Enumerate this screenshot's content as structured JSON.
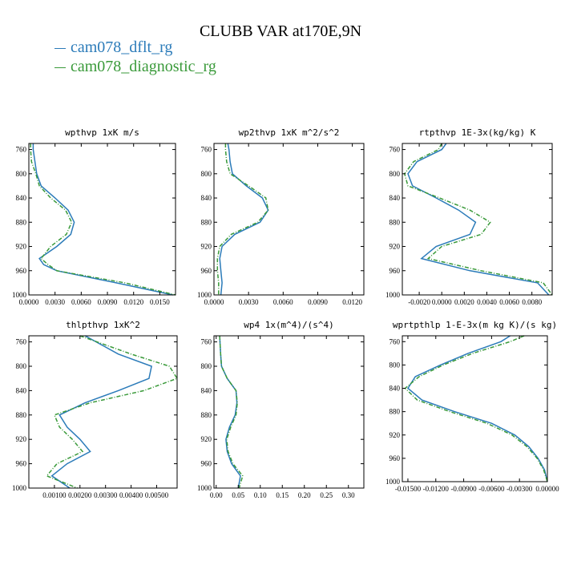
{
  "title": "CLUBB VAR at170E,9N",
  "legend": [
    {
      "label": "cam078_dflt_rg",
      "color": "#2b7bb9"
    },
    {
      "label": "cam078_diagnostic_rg",
      "color": "#3a9a3a"
    }
  ],
  "chart_data": [
    {
      "type": "line",
      "title": "wpthvp  1xK m/s",
      "xlim": [
        0,
        0.0168
      ],
      "ylim": [
        1000,
        750
      ],
      "xticks": [
        "0.0000",
        "0.0030",
        "0.0060",
        "0.0090",
        "0.0120",
        "0.0150"
      ],
      "xtick_values": [
        0,
        0.003,
        0.006,
        0.009,
        0.012,
        0.015
      ],
      "yticks": [
        760,
        800,
        840,
        880,
        920,
        960,
        1000
      ],
      "y": [
        750,
        760,
        780,
        800,
        820,
        840,
        860,
        880,
        900,
        920,
        940,
        950,
        960,
        980,
        1000
      ],
      "series": [
        {
          "values": [
            0.0005,
            0.0005,
            0.0007,
            0.0009,
            0.0014,
            0.003,
            0.0045,
            0.0052,
            0.0048,
            0.0032,
            0.0012,
            0.0017,
            0.0032,
            0.01,
            0.0165
          ]
        },
        {
          "values": [
            0.0002,
            0.0002,
            0.0003,
            0.0008,
            0.0012,
            0.0025,
            0.0042,
            0.0049,
            0.0043,
            0.0025,
            0.0014,
            0.0022,
            0.0032,
            0.011,
            0.0168
          ]
        }
      ]
    },
    {
      "type": "line",
      "title": "wp2thvp  1xK m^2/s^2",
      "xlim": [
        0,
        0.013
      ],
      "ylim": [
        1000,
        750
      ],
      "xticks": [
        "0.0000",
        "0.0030",
        "0.0060",
        "0.0090",
        "0.0120"
      ],
      "xtick_values": [
        0,
        0.003,
        0.006,
        0.009,
        0.012
      ],
      "yticks": [
        760,
        800,
        840,
        880,
        920,
        960,
        1000
      ],
      "y": [
        750,
        760,
        780,
        800,
        820,
        840,
        860,
        880,
        900,
        920,
        940,
        960,
        980,
        1000
      ],
      "series": [
        {
          "values": [
            0.0012,
            0.0013,
            0.0014,
            0.0016,
            0.0028,
            0.0042,
            0.0047,
            0.004,
            0.0018,
            0.0007,
            0.0005,
            0.0006,
            0.0007,
            0.0006
          ]
        },
        {
          "values": [
            0.001,
            0.001,
            0.0011,
            0.0014,
            0.003,
            0.0045,
            0.0047,
            0.0038,
            0.0015,
            0.0005,
            0.0003,
            0.0003,
            0.0004,
            0.0004
          ]
        }
      ]
    },
    {
      "type": "line",
      "title": "rtpthvp  1E-3x(kg/kg) K",
      "xlim": [
        -0.0035,
        0.0098
      ],
      "ylim": [
        1000,
        750
      ],
      "xticks": [
        "-0.0020",
        "0.0000",
        "0.0020",
        "0.0040",
        "0.0060",
        "0.0080"
      ],
      "xtick_values": [
        -0.002,
        0,
        0.002,
        0.004,
        0.006,
        0.008
      ],
      "yticks": [
        760,
        800,
        840,
        880,
        920,
        960,
        1000
      ],
      "y": [
        750,
        760,
        780,
        800,
        820,
        840,
        860,
        880,
        900,
        920,
        940,
        960,
        980,
        1000
      ],
      "series": [
        {
          "values": [
            0.0004,
            0.0,
            -0.0022,
            -0.003,
            -0.0026,
            -0.0005,
            0.0015,
            0.003,
            0.0025,
            -0.0005,
            -0.0018,
            0.0025,
            0.0085,
            0.0095
          ]
        },
        {
          "values": [
            0.0,
            -0.0003,
            -0.0025,
            -0.0033,
            -0.003,
            -0.0002,
            0.0025,
            0.0043,
            0.0035,
            0.0,
            -0.0012,
            0.0035,
            0.009,
            0.0098
          ]
        }
      ]
    },
    {
      "type": "line",
      "title": "thlpthvp  1xK^2",
      "xlim": [
        0,
        0.0058
      ],
      "ylim": [
        1000,
        750
      ],
      "xticks": [
        "0.00100",
        "0.00200",
        "0.00300",
        "0.00400",
        "0.00500"
      ],
      "xtick_values": [
        0.001,
        0.002,
        0.003,
        0.004,
        0.005
      ],
      "yticks": [
        760,
        800,
        840,
        880,
        920,
        960,
        1000
      ],
      "y": [
        750,
        780,
        800,
        820,
        840,
        860,
        880,
        900,
        920,
        940,
        960,
        980,
        1000
      ],
      "series": [
        {
          "values": [
            0.0022,
            0.0035,
            0.0048,
            0.0047,
            0.0035,
            0.0022,
            0.0012,
            0.0015,
            0.002,
            0.0024,
            0.0015,
            0.0009,
            0.0016
          ]
        },
        {
          "values": [
            0.002,
            0.004,
            0.0055,
            0.0058,
            0.0045,
            0.0024,
            0.001,
            0.0012,
            0.0017,
            0.0021,
            0.0011,
            0.0007,
            0.0019
          ]
        }
      ]
    },
    {
      "type": "line",
      "title": "wp4  1x(m^4)/(s^4)",
      "xlim": [
        -0.005,
        0.335
      ],
      "ylim": [
        1000,
        750
      ],
      "xticks": [
        "0.00",
        "0.05",
        "0.10",
        "0.15",
        "0.20",
        "0.25",
        "0.30"
      ],
      "xtick_values": [
        0,
        0.05,
        0.1,
        0.15,
        0.2,
        0.25,
        0.3
      ],
      "yticks": [
        760,
        800,
        840,
        880,
        920,
        960,
        1000
      ],
      "y": [
        750,
        780,
        800,
        820,
        840,
        860,
        880,
        900,
        920,
        940,
        960,
        980,
        1000
      ],
      "series": [
        {
          "values": [
            0.008,
            0.01,
            0.012,
            0.025,
            0.045,
            0.047,
            0.043,
            0.03,
            0.022,
            0.025,
            0.035,
            0.055,
            0.05
          ]
        },
        {
          "values": [
            0.008,
            0.01,
            0.012,
            0.025,
            0.045,
            0.048,
            0.045,
            0.033,
            0.024,
            0.027,
            0.038,
            0.06,
            0.052
          ]
        }
      ]
    },
    {
      "type": "line",
      "title": "wprtpthlp  1-E-3x(m kg K)/(s kg)",
      "xlim": [
        -0.0156,
        0.0
      ],
      "ylim": [
        1000,
        750
      ],
      "xticks": [
        "-0.01500",
        "-0.01200",
        "-0.00900",
        "-0.00600",
        "-0.00300",
        "0.00000"
      ],
      "xtick_values": [
        -0.015,
        -0.012,
        -0.009,
        -0.006,
        -0.003,
        0
      ],
      "yticks": [
        760,
        800,
        840,
        880,
        920,
        960,
        1000
      ],
      "y": [
        750,
        760,
        780,
        800,
        820,
        840,
        860,
        880,
        900,
        920,
        940,
        960,
        980,
        1000
      ],
      "series": [
        {
          "values": [
            -0.004,
            -0.005,
            -0.0085,
            -0.0115,
            -0.0142,
            -0.015,
            -0.0135,
            -0.01,
            -0.006,
            -0.0035,
            -0.002,
            -0.001,
            -0.0003,
            0.0
          ]
        },
        {
          "values": [
            -0.0025,
            -0.004,
            -0.008,
            -0.0112,
            -0.0138,
            -0.0153,
            -0.014,
            -0.0105,
            -0.0065,
            -0.0038,
            -0.0022,
            -0.0011,
            -0.0004,
            0.0
          ]
        }
      ]
    }
  ]
}
